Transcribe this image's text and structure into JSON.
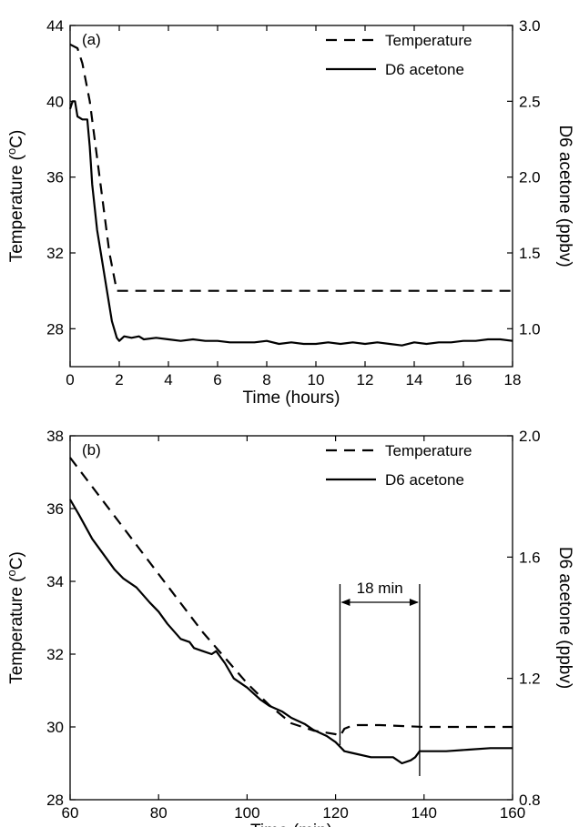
{
  "chart_data": [
    {
      "type": "line",
      "panel_label": "(a)",
      "xlabel": "Time (hours)",
      "ylabel": "Temperature (°C)",
      "ylabel_right": "D6 acetone (ppbv)",
      "xlim": [
        0,
        18
      ],
      "ylim": [
        26,
        44
      ],
      "ylim_right": [
        0.75,
        3.0
      ],
      "x_ticks": [
        0,
        2,
        4,
        6,
        8,
        10,
        12,
        14,
        16,
        18
      ],
      "y_ticks": [
        28,
        32,
        36,
        40,
        44
      ],
      "y_ticks_right": [
        1.0,
        1.5,
        2.0,
        2.5,
        3.0
      ],
      "y_tick_labels_right": [
        "1.0",
        "1.5",
        "2.0",
        "2.5",
        "3.0"
      ],
      "legend_position": "top-right",
      "series": [
        {
          "name": "Temperature",
          "axis": "left",
          "style": "dashed",
          "x": [
            0,
            0.3,
            0.5,
            0.8,
            1.2,
            1.6,
            1.9,
            2.0,
            3,
            6,
            10,
            14,
            18
          ],
          "y": [
            43.0,
            42.8,
            42.0,
            40.0,
            36.0,
            32.0,
            30.0,
            30.0,
            30.0,
            30.0,
            30.0,
            30.0,
            30.0
          ]
        },
        {
          "name": "D6 acetone",
          "axis": "right",
          "style": "solid",
          "x": [
            0,
            0.1,
            0.2,
            0.3,
            0.5,
            0.7,
            0.8,
            0.9,
            1.0,
            1.1,
            1.3,
            1.5,
            1.7,
            1.9,
            2.0,
            2.2,
            2.5,
            2.8,
            3.0,
            3.5,
            4.0,
            4.5,
            5.0,
            5.5,
            6.0,
            6.5,
            7.0,
            7.5,
            8.0,
            8.5,
            9.0,
            9.5,
            10.0,
            10.5,
            11.0,
            11.5,
            12.0,
            12.5,
            13.0,
            13.5,
            14.0,
            14.5,
            15.0,
            15.5,
            16.0,
            16.5,
            17.0,
            17.5,
            18.0
          ],
          "y": [
            2.45,
            2.5,
            2.5,
            2.4,
            2.38,
            2.38,
            2.2,
            1.95,
            1.8,
            1.65,
            1.45,
            1.25,
            1.05,
            0.94,
            0.92,
            0.95,
            0.94,
            0.95,
            0.93,
            0.94,
            0.93,
            0.92,
            0.93,
            0.92,
            0.92,
            0.91,
            0.91,
            0.91,
            0.92,
            0.9,
            0.91,
            0.9,
            0.9,
            0.91,
            0.9,
            0.91,
            0.9,
            0.91,
            0.9,
            0.89,
            0.91,
            0.9,
            0.91,
            0.91,
            0.92,
            0.92,
            0.93,
            0.93,
            0.92
          ]
        }
      ]
    },
    {
      "type": "line",
      "panel_label": "(b)",
      "xlabel": "Time (min)",
      "ylabel": "Temperature (°C)",
      "ylabel_right": "D6 acetone (ppbv)",
      "xlim": [
        60,
        160
      ],
      "ylim": [
        28,
        38
      ],
      "ylim_right": [
        0.8,
        2.0
      ],
      "x_ticks": [
        60,
        80,
        100,
        120,
        140,
        160
      ],
      "y_ticks": [
        28,
        30,
        32,
        34,
        36,
        38
      ],
      "y_ticks_right": [
        0.8,
        1.2,
        1.6,
        2.0
      ],
      "y_tick_labels_right": [
        "0.8",
        "1.2",
        "1.6",
        "2.0"
      ],
      "legend_position": "top-right",
      "annotation": {
        "text": "18 min",
        "x_start": 121,
        "x_end": 139
      },
      "series": [
        {
          "name": "Temperature",
          "axis": "left",
          "style": "dashed",
          "x": [
            60,
            65,
            70,
            75,
            80,
            85,
            90,
            95,
            100,
            105,
            110,
            115,
            120,
            121,
            122,
            123,
            125,
            130,
            140,
            150,
            160
          ],
          "y": [
            37.4,
            36.6,
            35.8,
            35.0,
            34.2,
            33.4,
            32.6,
            31.9,
            31.2,
            30.6,
            30.1,
            29.9,
            29.8,
            29.75,
            29.95,
            30.0,
            30.05,
            30.05,
            30.0,
            30.0,
            30.0
          ]
        },
        {
          "name": "D6 acetone",
          "axis": "right",
          "style": "solid",
          "x": [
            60,
            62,
            65,
            68,
            70,
            72,
            75,
            78,
            80,
            82,
            85,
            87,
            88,
            90,
            92,
            93,
            95,
            97,
            100,
            103,
            105,
            108,
            110,
            113,
            115,
            118,
            120,
            122,
            125,
            128,
            130,
            133,
            135,
            137,
            138,
            139,
            140,
            145,
            150,
            155,
            160
          ],
          "y": [
            1.79,
            1.74,
            1.66,
            1.6,
            1.56,
            1.53,
            1.5,
            1.45,
            1.42,
            1.38,
            1.33,
            1.32,
            1.3,
            1.29,
            1.28,
            1.29,
            1.25,
            1.2,
            1.17,
            1.13,
            1.11,
            1.09,
            1.07,
            1.05,
            1.03,
            1.01,
            0.99,
            0.96,
            0.95,
            0.94,
            0.94,
            0.94,
            0.92,
            0.93,
            0.94,
            0.96,
            0.96,
            0.96,
            0.965,
            0.97,
            0.97
          ]
        }
      ]
    }
  ]
}
